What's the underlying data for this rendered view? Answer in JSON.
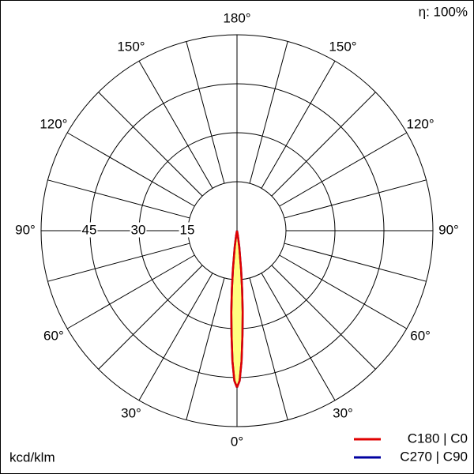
{
  "chart_data": {
    "type": "polar",
    "efficiency_label": "η: 100%",
    "unit_label": "kcd/klm",
    "rlim": [
      0,
      60
    ],
    "rticks": [
      15,
      30,
      45
    ],
    "angle_grid_step": 15,
    "angle_ticks": [
      {
        "value": 0,
        "label": "0°"
      },
      {
        "value": 30,
        "label": "30°"
      },
      {
        "value": 60,
        "label": "60°"
      },
      {
        "value": 90,
        "label": "90°"
      },
      {
        "value": 120,
        "label": "120°"
      },
      {
        "value": 150,
        "label": "150°"
      },
      {
        "value": 180,
        "label": "180°"
      }
    ],
    "angles": [
      0,
      1,
      2,
      3,
      4,
      5,
      6,
      8,
      10,
      15
    ],
    "fill_color": "#ffff80",
    "series": [
      {
        "name": "C270 | C90",
        "color": "#0000a0",
        "values": [
          48,
          46,
          40,
          32,
          25,
          18,
          12,
          5,
          1.5,
          0
        ]
      },
      {
        "name": "C180 | C0",
        "color": "#e00000",
        "values": [
          48,
          46,
          40,
          32,
          25,
          18,
          12,
          5,
          1.5,
          0
        ]
      }
    ]
  }
}
